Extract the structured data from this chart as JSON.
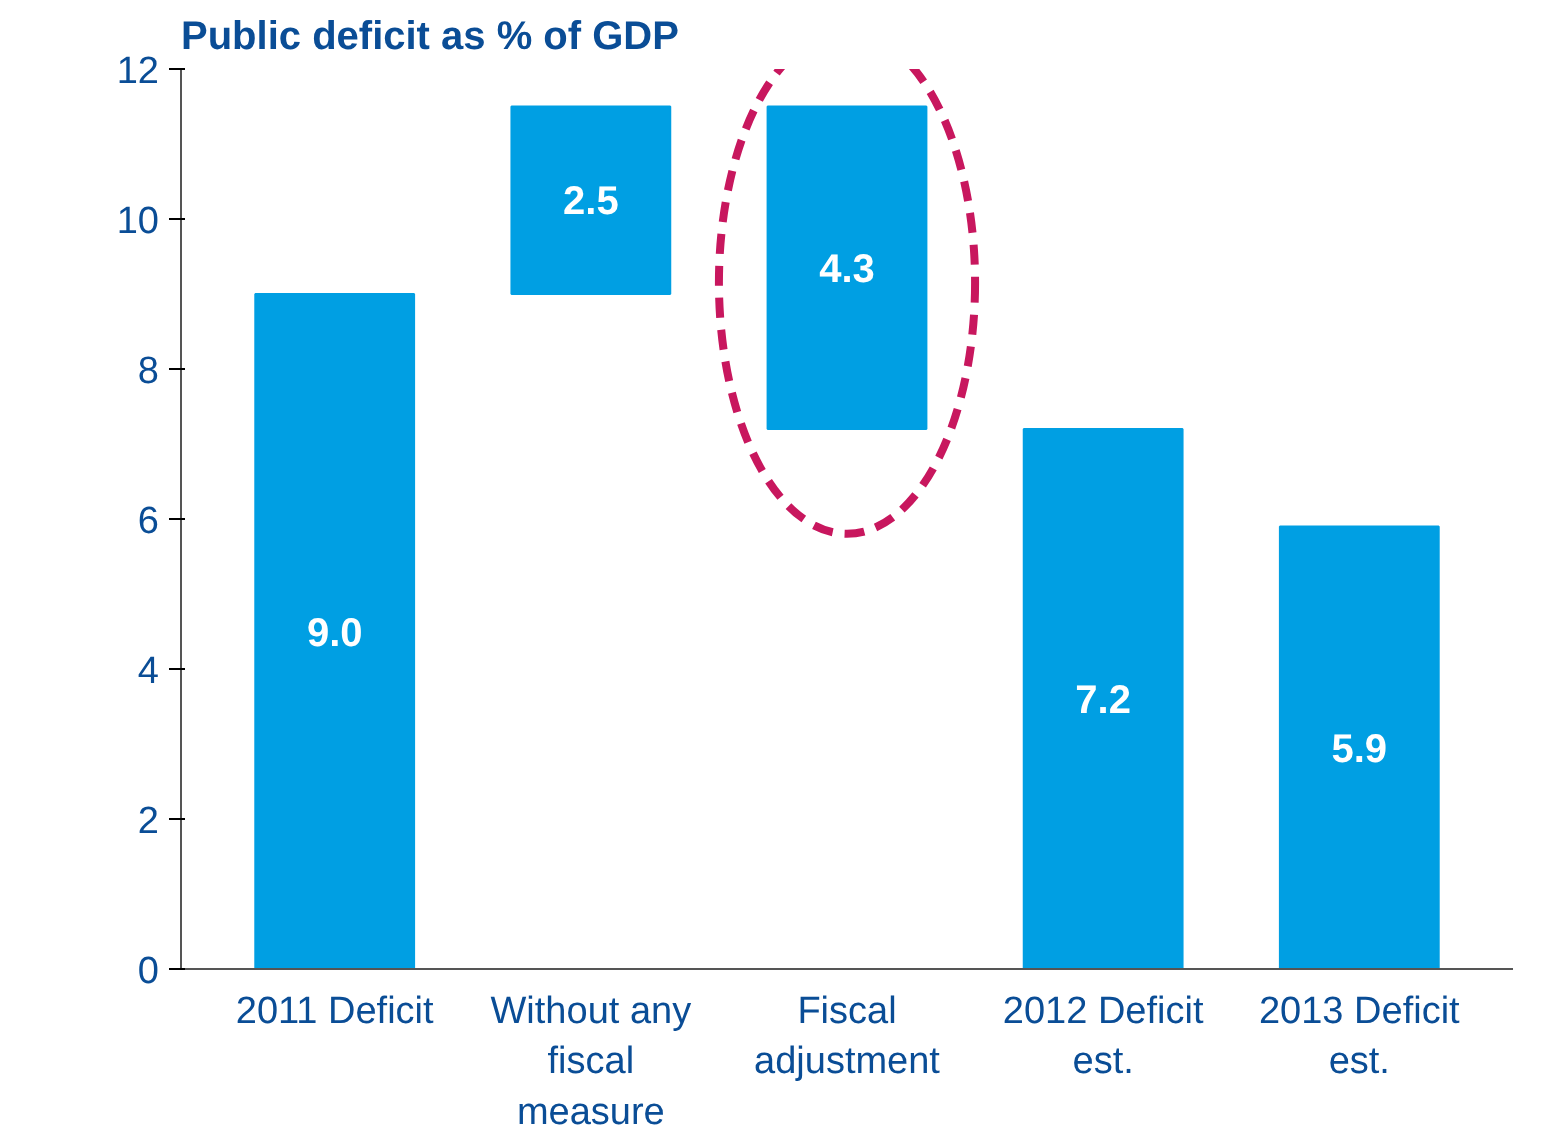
{
  "chart_data": {
    "type": "bar",
    "title": "Public deficit as % of GDP",
    "categories": [
      "2011 Deficit",
      "Without any fiscal measure",
      "Fiscal adjustment",
      "2012 Deficit est.",
      "2013 Deficit est."
    ],
    "values": [
      9.0,
      2.5,
      4.3,
      7.2,
      5.9
    ],
    "base": [
      0,
      9.0,
      7.2,
      0,
      0
    ],
    "color": "#009fe3",
    "ylim": [
      0,
      12
    ],
    "yticks": [
      0,
      2,
      4,
      6,
      8,
      10,
      12
    ],
    "value_labels": [
      "9.0",
      "2.5",
      "4.3",
      "7.2",
      "5.9"
    ],
    "grid": false
  }
}
